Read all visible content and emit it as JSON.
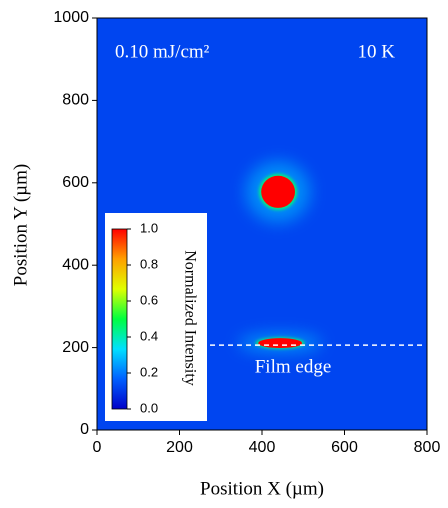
{
  "chart_data": {
    "type": "image",
    "xlabel": "Position X (µm)",
    "ylabel": "Position Y (µm)",
    "xlim": [
      0,
      800
    ],
    "xticks": [
      0,
      200,
      400,
      600,
      800
    ],
    "ylim": [
      0,
      1000
    ],
    "yticks": [
      0,
      200,
      400,
      600,
      800,
      1000
    ],
    "annotations": [
      "0.10 mJ/cm²",
      "10 K"
    ],
    "colormap": [
      "#0000c8",
      "#0060ff",
      "#00e0ff",
      "#00ff40",
      "#e0ff00",
      "#ffa000",
      "#ff0000"
    ],
    "background_intensity": 0.12,
    "spots": [
      {
        "x": 439,
        "y": 578,
        "rx": 41,
        "ry": 39,
        "intensity": 1
      },
      {
        "x": 444,
        "y": 211,
        "rx": 53,
        "ry": 12,
        "intensity": 1
      }
    ],
    "film_edge": {
      "label": "Film edge",
      "y": 206,
      "x": [
        274,
        795
      ]
    },
    "colorbar": {
      "label": "Normalized Intensity",
      "lim": [
        0,
        1
      ],
      "ticks": [
        {
          "value": 0,
          "label": "0.0"
        },
        {
          "value": 0.2,
          "label": "0.2"
        },
        {
          "value": 0.4,
          "label": "0.4"
        },
        {
          "value": 0.6,
          "label": "0.6"
        },
        {
          "value": 0.8,
          "label": "0.8"
        },
        {
          "value": 1,
          "label": "1.0"
        }
      ]
    }
  }
}
